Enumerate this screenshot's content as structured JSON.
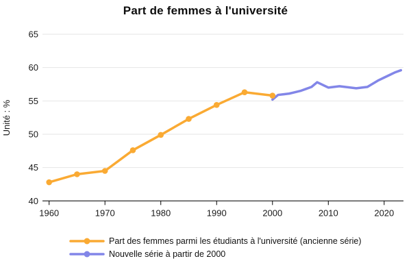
{
  "title": "Part de femmes à l'université",
  "chart_data": {
    "type": "line",
    "title": "Part de femmes à l'université",
    "xlabel": "",
    "ylabel": "Unité : %",
    "ylim": [
      40,
      65
    ],
    "yticks": [
      40,
      45,
      50,
      55,
      60,
      65
    ],
    "xticks": [
      1960,
      1970,
      1980,
      1990,
      2000,
      2010,
      2020
    ],
    "grid": true,
    "legend_position": "bottom-left",
    "colors": {
      "grid": "#e6e6e6",
      "axis": "#000000",
      "tick_text": "#1a1a1a"
    },
    "series": [
      {
        "name": "Part des femmes parmi les étudiants à l'université (ancienne série)",
        "color": "#FAAA33",
        "markers": true,
        "x": [
          1960,
          1965,
          1970,
          1975,
          1980,
          1985,
          1990,
          1995,
          2000
        ],
        "y": [
          42.8,
          44.0,
          44.5,
          47.6,
          49.9,
          52.3,
          54.4,
          56.3,
          55.8
        ]
      },
      {
        "name": "Nouvelle série à partir de 2000",
        "color": "#8286E8",
        "markers": false,
        "x": [
          2000,
          2001,
          2002,
          2003,
          2004,
          2005,
          2006,
          2007,
          2008,
          2009,
          2010,
          2011,
          2012,
          2013,
          2014,
          2015,
          2016,
          2017,
          2018,
          2019,
          2020,
          2021,
          2022,
          2023
        ],
        "y": [
          55.2,
          55.9,
          56.0,
          56.1,
          56.3,
          56.5,
          56.8,
          57.1,
          57.8,
          57.4,
          57.0,
          57.1,
          57.2,
          57.1,
          57.0,
          56.9,
          57.0,
          57.1,
          57.6,
          58.1,
          58.5,
          58.9,
          59.3,
          59.6
        ]
      }
    ]
  }
}
